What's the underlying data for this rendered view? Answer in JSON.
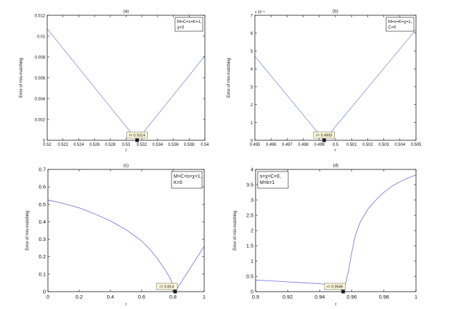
{
  "chart_data": [
    {
      "type": "line",
      "title": "(a)",
      "ylabel": "Error of mis-matching",
      "xlabel": "r",
      "xlim": [
        0.52,
        0.54
      ],
      "ylim": [
        0,
        0.012
      ],
      "xticks": [
        0.52,
        0.522,
        0.524,
        0.526,
        0.528,
        0.53,
        0.532,
        0.534,
        0.536,
        0.538,
        0.54
      ],
      "xtick_labels": [
        "0.52",
        "0.522",
        "0.524",
        "0.526",
        "0.528",
        "0.53",
        "0.532",
        "0.534",
        "0.536",
        "0.538",
        "0.54"
      ],
      "yticks": [
        0,
        0.002,
        0.004,
        0.006,
        0.008,
        0.01,
        0.012
      ],
      "ytick_labels": [
        "0",
        "0.002",
        "0.004",
        "0.006",
        "0.008",
        "0.01",
        "0.012"
      ],
      "series": [
        {
          "x": [
            0.52,
            0.5314
          ],
          "y": [
            0.0107,
            0
          ]
        },
        {
          "x": [
            0.5314,
            0.54
          ],
          "y": [
            0,
            0.0081
          ]
        }
      ],
      "marker": {
        "x": 0.5314,
        "y": 0,
        "label": "r= 0.5314"
      },
      "legend": [
        "M=C=s=K=1,",
        "χ=3"
      ],
      "legend_position": "top-right",
      "color": "#7b7bdc"
    },
    {
      "type": "line",
      "title": "(b)",
      "ylabel": "Error of mis-matching",
      "xlabel": "r",
      "xlim": [
        0.495,
        0.505
      ],
      "ylim": [
        0,
        0.007
      ],
      "multiplier_label": "x 10⁻³",
      "xticks": [
        0.495,
        0.496,
        0.497,
        0.498,
        0.499,
        0.5,
        0.501,
        0.502,
        0.503,
        0.504,
        0.505
      ],
      "xtick_labels": [
        "0.495",
        "0.496",
        "0.497",
        "0.498",
        "0.499",
        "0.5",
        "0.501",
        "0.502",
        "0.503",
        "0.504",
        "0.505"
      ],
      "yticks": [
        0,
        0.001,
        0.002,
        0.003,
        0.004,
        0.005,
        0.006,
        0.007
      ],
      "ytick_labels": [
        "0",
        "1",
        "2",
        "3",
        "4",
        "5",
        "6",
        "7"
      ],
      "series": [
        {
          "x": [
            0.495,
            0.4993
          ],
          "y": [
            0.0047,
            0
          ]
        },
        {
          "x": [
            0.4993,
            0.505
          ],
          "y": [
            0,
            0.0062
          ]
        }
      ],
      "marker": {
        "x": 0.4993,
        "y": 0,
        "label": "r= 0.4993"
      },
      "legend": [
        "M=s=K=χ=1,",
        "C=0"
      ],
      "legend_position": "top-right",
      "color": "#7b7bdc"
    },
    {
      "type": "line",
      "title": "(c)",
      "ylabel": "Error of mis-matching",
      "xlabel": "r",
      "xlim": [
        0,
        1
      ],
      "ylim": [
        0,
        0.7
      ],
      "xticks": [
        0,
        0.2,
        0.4,
        0.6,
        0.8,
        1
      ],
      "xtick_labels": [
        "0",
        "0.2",
        "0.4",
        "0.6",
        "0.8",
        "1"
      ],
      "yticks": [
        0,
        0.1,
        0.2,
        0.3,
        0.4,
        0.5,
        0.6,
        0.7
      ],
      "ytick_labels": [
        "0",
        "0.1",
        "0.2",
        "0.3",
        "0.4",
        "0.5",
        "0.6",
        "0.7"
      ],
      "series": [
        {
          "x": [
            0,
            0.1,
            0.2,
            0.3,
            0.4,
            0.5,
            0.6,
            0.65,
            0.7,
            0.75,
            0.78,
            0.8,
            0.814
          ],
          "y": [
            0.525,
            0.505,
            0.48,
            0.445,
            0.405,
            0.355,
            0.29,
            0.245,
            0.19,
            0.125,
            0.08,
            0.04,
            0.0
          ]
        },
        {
          "x": [
            0.814,
            0.85,
            0.9,
            0.95,
            1.0
          ],
          "y": [
            0.0,
            0.05,
            0.12,
            0.19,
            0.26
          ]
        }
      ],
      "marker": {
        "x": 0.814,
        "y": 0,
        "label": "r= 0.814"
      },
      "legend": [
        "M=C=s=χ=1,",
        "K=0"
      ],
      "legend_position": "top-right",
      "color": "#7b7bdc"
    },
    {
      "type": "line",
      "title": "(d)",
      "ylabel": "Error of mis-matching",
      "xlabel": "r",
      "xlim": [
        0.9,
        1
      ],
      "ylim": [
        0,
        4
      ],
      "xticks": [
        0.9,
        0.92,
        0.94,
        0.96,
        0.98,
        1
      ],
      "xtick_labels": [
        "0.9",
        "0.92",
        "0.94",
        "0.96",
        "0.98",
        "1"
      ],
      "yticks": [
        0,
        0.5,
        1,
        1.5,
        2,
        2.5,
        3,
        3.5,
        4
      ],
      "ytick_labels": [
        "0",
        "0.5",
        "1",
        "1.5",
        "2",
        "2.5",
        "3",
        "3.5",
        "4"
      ],
      "series": [
        {
          "x": [
            0.9,
            0.91,
            0.92,
            0.93,
            0.94,
            0.95,
            0.9546
          ],
          "y": [
            0.38,
            0.35,
            0.32,
            0.29,
            0.26,
            0.2,
            0.0
          ]
        },
        {
          "x": [
            0.9546,
            0.956,
            0.958,
            0.96,
            0.962,
            0.965,
            0.97,
            0.975,
            0.98,
            0.985,
            0.99,
            0.995,
            1.0
          ],
          "y": [
            0.0,
            0.25,
            0.7,
            1.3,
            1.8,
            2.25,
            2.7,
            3.0,
            3.25,
            3.45,
            3.6,
            3.72,
            3.82
          ]
        }
      ],
      "marker": {
        "x": 0.9546,
        "y": 0,
        "label": "r= 0.9546"
      },
      "legend": [
        "s=χ=C=0,",
        "M=k=1"
      ],
      "legend_position": "top-left",
      "color": "#7b7bdc"
    }
  ]
}
